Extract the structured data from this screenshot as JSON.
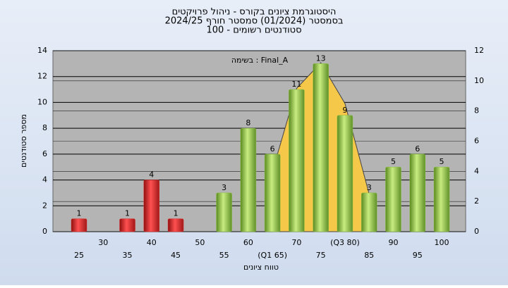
{
  "chart_data": {
    "type": "bar",
    "title": [
      "היסטוגרמת ציונים בקורס - ניהול פרויקטים",
      "בסמסטר  (01/2024)  סמסטר חורף 2024/25",
      "סטודנטים רשומים - 100"
    ],
    "annotation": "בשימה : Final_A",
    "x_label": "טווח ציונים",
    "y_label": "מספר סטודנטים",
    "categories": [
      "25",
      "30",
      "35",
      "40",
      "45",
      "50",
      "55",
      "60",
      "(Q1 65)",
      "70",
      "75",
      "(Q3 80)",
      "85",
      "90",
      "95",
      "100"
    ],
    "series": [
      {
        "type": "bar",
        "values": [
          1,
          null,
          1,
          4,
          1,
          null,
          null,
          null,
          null,
          null,
          null,
          null,
          null,
          null,
          null,
          null
        ],
        "color": "#e03030"
      },
      {
        "type": "bar",
        "values": [
          null,
          null,
          null,
          null,
          null,
          null,
          3,
          8,
          6,
          11,
          13,
          9,
          3,
          5,
          6,
          5
        ],
        "color": "#8cc040"
      },
      {
        "type": "area",
        "axis": "y2",
        "values": [
          null,
          null,
          null,
          null,
          null,
          null,
          null,
          null,
          4,
          9.5,
          11.2,
          8.5,
          2.5,
          null,
          null,
          null
        ],
        "color": "#f5c84a"
      }
    ],
    "ylim": [
      0,
      14
    ],
    "yticks": [
      0,
      2,
      4,
      6,
      8,
      10,
      12,
      14
    ],
    "y2lim": [
      0,
      12
    ],
    "y2ticks": [
      0,
      2,
      4,
      6,
      8,
      10,
      12
    ],
    "grid": true
  }
}
